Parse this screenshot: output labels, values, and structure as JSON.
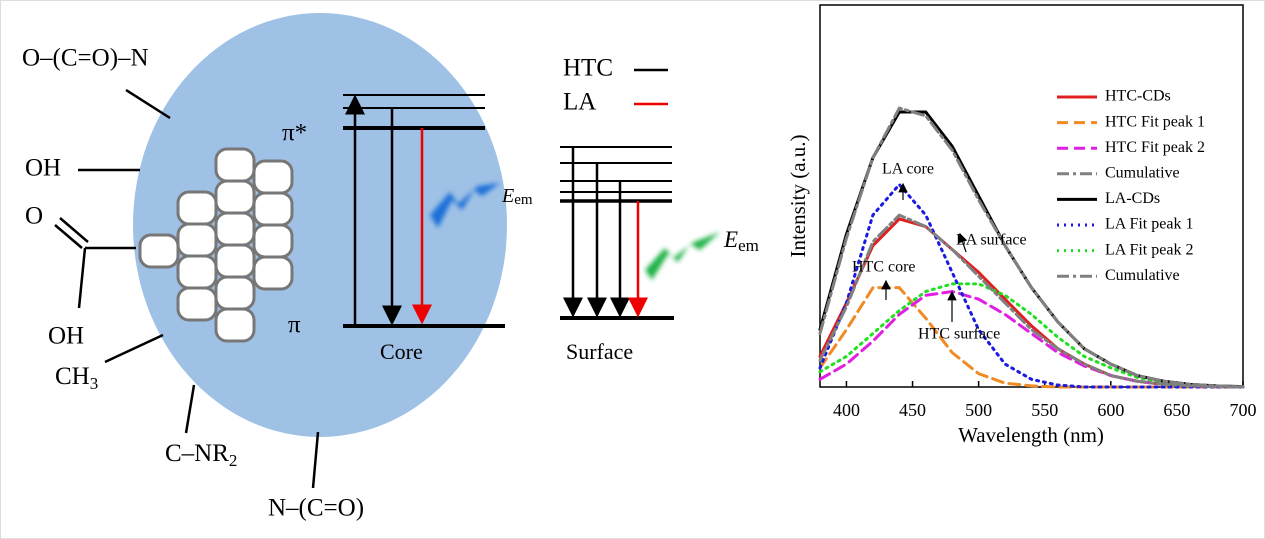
{
  "diagram": {
    "groups": {
      "oconh": "O–(C=O)–N",
      "oh1": "OH",
      "o": "O",
      "oh2": "OH",
      "ch3": {
        "base": "CH",
        "sub": "3"
      },
      "cnr2": {
        "base": "C–NR",
        "sub": "2"
      },
      "nco": "N–(C=O)"
    },
    "core": {
      "pi_star": "π*",
      "pi": "π",
      "label": "Core",
      "emission": {
        "base": "E",
        "sub": "em"
      }
    },
    "surface": {
      "label": "Surface",
      "emission": {
        "base": "E",
        "sub": "em"
      }
    },
    "legend": {
      "htc": "HTC",
      "la": "LA"
    }
  },
  "chart_data": {
    "type": "line",
    "xlabel": "Wavelength (nm)",
    "ylabel": "Intensity (a.u.)",
    "x": [
      380,
      400,
      420,
      440,
      460,
      480,
      500,
      520,
      540,
      560,
      580,
      600,
      620,
      640,
      660,
      680,
      700
    ],
    "xlim": [
      380,
      700
    ],
    "xticks": [
      400,
      450,
      500,
      550,
      600,
      650,
      700
    ],
    "ylim": [
      0,
      1
    ],
    "legend": "upper right",
    "series": [
      {
        "name": "HTC-CDs",
        "color": "#e02020",
        "dash": "solid",
        "values": [
          0.08,
          0.22,
          0.37,
          0.44,
          0.42,
          0.36,
          0.3,
          0.23,
          0.16,
          0.1,
          0.06,
          0.03,
          0.015,
          0.007,
          0.003,
          0.001,
          0
        ]
      },
      {
        "name": "HTC Fit peak 1",
        "color": "#f08a24",
        "dash": "dashed",
        "values": [
          0.05,
          0.15,
          0.26,
          0.26,
          0.18,
          0.09,
          0.035,
          0.01,
          0.003,
          0,
          0,
          0,
          0,
          0,
          0,
          0,
          0
        ]
      },
      {
        "name": "HTC Fit peak 2",
        "color": "#e020e0",
        "dash": "dashed",
        "values": [
          0.02,
          0.06,
          0.12,
          0.19,
          0.24,
          0.25,
          0.23,
          0.19,
          0.14,
          0.09,
          0.055,
          0.03,
          0.015,
          0.007,
          0.003,
          0.001,
          0
        ]
      },
      {
        "name": "Cumulative",
        "color": "#808080",
        "dash": "dash-dot",
        "values": [
          0.07,
          0.21,
          0.38,
          0.45,
          0.42,
          0.36,
          0.29,
          0.22,
          0.15,
          0.1,
          0.06,
          0.03,
          0.015,
          0.007,
          0.003,
          0.001,
          0
        ]
      },
      {
        "name": "LA-CDs",
        "color": "#000000",
        "dash": "solid",
        "values": [
          0.15,
          0.4,
          0.6,
          0.72,
          0.72,
          0.63,
          0.5,
          0.37,
          0.26,
          0.17,
          0.1,
          0.06,
          0.03,
          0.015,
          0.007,
          0.003,
          0.001
        ]
      },
      {
        "name": "LA Fit peak 1",
        "color": "#1a1ae0",
        "dash": "dotted",
        "values": [
          0.05,
          0.22,
          0.45,
          0.53,
          0.45,
          0.3,
          0.15,
          0.06,
          0.02,
          0.005,
          0,
          0,
          0,
          0,
          0,
          0,
          0
        ]
      },
      {
        "name": "LA Fit peak 2",
        "color": "#20e020",
        "dash": "dotted",
        "values": [
          0.04,
          0.08,
          0.14,
          0.2,
          0.25,
          0.27,
          0.27,
          0.24,
          0.19,
          0.13,
          0.08,
          0.05,
          0.025,
          0.012,
          0.005,
          0.002,
          0.001
        ]
      },
      {
        "name": "Cumulative",
        "color": "#808080",
        "dash": "dash-dot",
        "values": [
          0.14,
          0.39,
          0.6,
          0.73,
          0.71,
          0.62,
          0.49,
          0.37,
          0.26,
          0.17,
          0.1,
          0.06,
          0.03,
          0.015,
          0.007,
          0.003,
          0.001
        ]
      }
    ],
    "annotations": [
      "LA core",
      "LA surface",
      "HTC core",
      "HTC surface"
    ]
  }
}
